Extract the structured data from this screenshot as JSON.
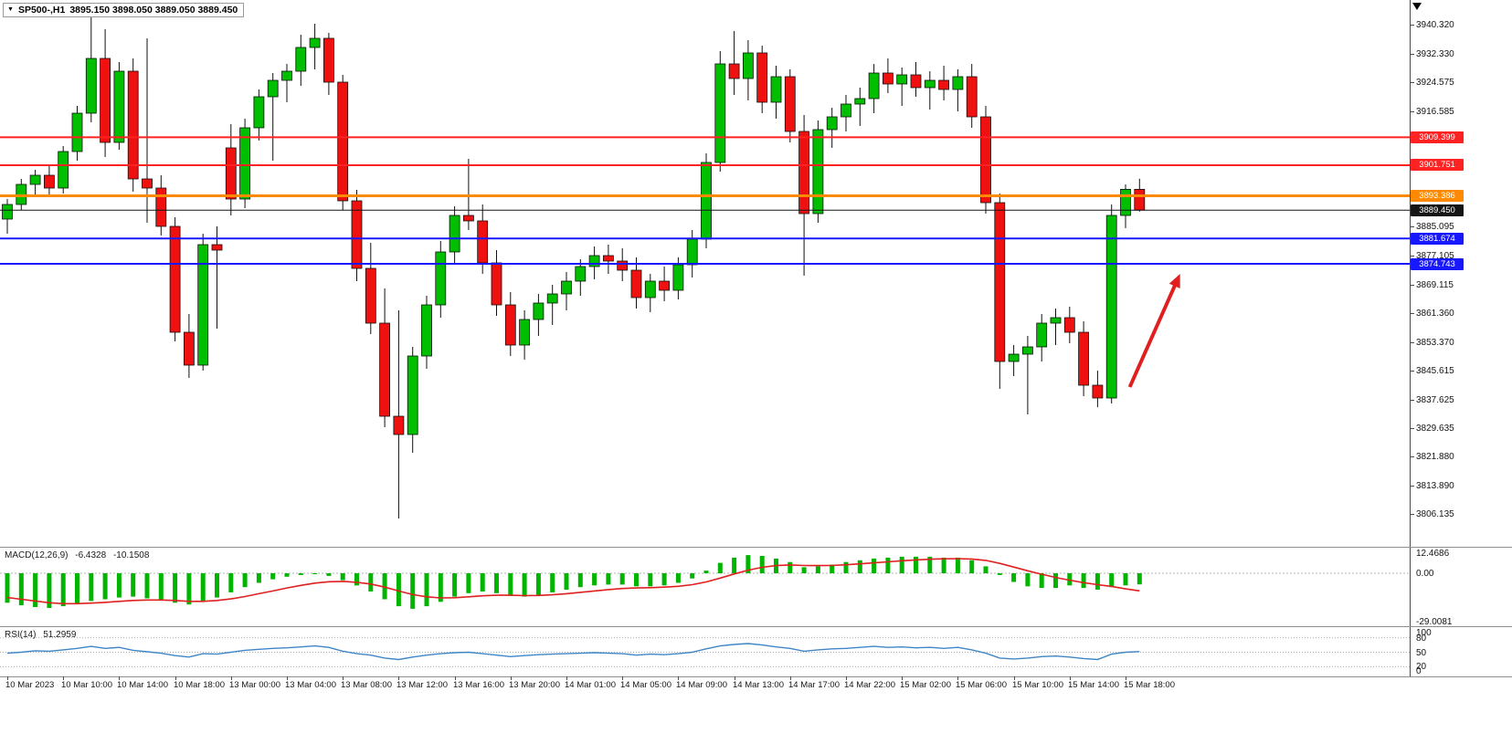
{
  "header": {
    "dropdown_icon": "▼",
    "symbol": "SP500-,H1",
    "ohlc_text": "3895.150 3898.050 3889.050 3889.450"
  },
  "colors": {
    "up": "#00bf00",
    "down": "#ef1010",
    "wick": "#101010",
    "macd_histogram": "#00b400",
    "macd_signal": "#e02020",
    "rsi_line": "#3f86c6",
    "arrow": "#e02020",
    "axis_text": "#151515",
    "resistance": "#ff2222",
    "support": "#1818ff",
    "pivot": "#ff8a00",
    "current_price": "#151515"
  },
  "chart_data": {
    "type": "candlestick",
    "symbol": "SP500-",
    "timeframe": "H1",
    "current_ohlc": {
      "open": 3895.15,
      "high": 3898.05,
      "low": 3889.05,
      "close": 3889.45
    },
    "y_axis": {
      "range_top": 3947.0,
      "range_bottom": 3797.5,
      "visible_ticks": [
        "3940.320",
        "3932.330",
        "3924.575",
        "3916.585",
        "3885.095",
        "3877.105",
        "3869.115",
        "3861.360",
        "3853.370",
        "3845.615",
        "3837.625",
        "3829.635",
        "3821.880",
        "3813.890",
        "3806.135"
      ]
    },
    "levels": [
      {
        "label": "3909.399",
        "price": 3909.399,
        "color": "#ff2222",
        "width": 2,
        "kind": "resistance"
      },
      {
        "label": "3901.751",
        "price": 3901.751,
        "color": "#ff2222",
        "width": 2,
        "kind": "resistance"
      },
      {
        "label": "3893.386",
        "price": 3893.386,
        "color": "#ff8a00",
        "width": 3,
        "kind": "pivot"
      },
      {
        "label": "3889.450",
        "price": 3889.45,
        "color": "#151515",
        "width": 1,
        "kind": "current-price"
      },
      {
        "label": "3881.674",
        "price": 3881.674,
        "color": "#1818ff",
        "width": 2,
        "kind": "support"
      },
      {
        "label": "3874.743",
        "price": 3874.743,
        "color": "#1818ff",
        "width": 2,
        "kind": "support"
      }
    ],
    "time_labels": [
      "10 Mar 2023",
      "10 Mar 10:00",
      "10 Mar 14:00",
      "10 Mar 18:00",
      "13 Mar 00:00",
      "13 Mar 04:00",
      "13 Mar 08:00",
      "13 Mar 12:00",
      "13 Mar 16:00",
      "13 Mar 20:00",
      "14 Mar 01:00",
      "14 Mar 05:00",
      "14 Mar 09:00",
      "14 Mar 13:00",
      "14 Mar 17:00",
      "14 Mar 22:00",
      "15 Mar 02:00",
      "15 Mar 06:00",
      "15 Mar 10:00",
      "15 Mar 14:00",
      "15 Mar 18:00"
    ],
    "candles": [
      [
        3887,
        3892.5,
        3883,
        3891
      ],
      [
        3891,
        3898,
        3889.5,
        3896.5
      ],
      [
        3896.5,
        3900.5,
        3893,
        3899
      ],
      [
        3899,
        3901.5,
        3893.5,
        3895.5
      ],
      [
        3895.5,
        3907,
        3894,
        3905.5
      ],
      [
        3905.5,
        3918,
        3903,
        3916
      ],
      [
        3916,
        3943.5,
        3913.5,
        3931
      ],
      [
        3931,
        3939,
        3904,
        3908
      ],
      [
        3908,
        3930,
        3906,
        3927.5
      ],
      [
        3927.5,
        3931,
        3894.5,
        3898
      ],
      [
        3898,
        3936.5,
        3886,
        3895.5
      ],
      [
        3895.5,
        3899,
        3882.5,
        3885
      ],
      [
        3885,
        3887.5,
        3853.5,
        3856
      ],
      [
        3856,
        3861,
        3843.5,
        3847
      ],
      [
        3847,
        3883,
        3845.5,
        3880
      ],
      [
        3880,
        3885,
        3857,
        3878.5
      ],
      [
        3906.5,
        3913,
        3888,
        3892.5
      ],
      [
        3892.5,
        3914.5,
        3890,
        3912
      ],
      [
        3912,
        3922.5,
        3908.5,
        3920.5
      ],
      [
        3920.5,
        3927,
        3903,
        3925
      ],
      [
        3925,
        3929.5,
        3919,
        3927.5
      ],
      [
        3927.5,
        3937.5,
        3923.5,
        3934
      ],
      [
        3934,
        3940.5,
        3928,
        3936.5
      ],
      [
        3936.5,
        3938,
        3921,
        3924.5
      ],
      [
        3924.5,
        3926.5,
        3889.5,
        3892
      ],
      [
        3892,
        3895,
        3870,
        3873.5
      ],
      [
        3873.5,
        3880.5,
        3855.5,
        3858.5
      ],
      [
        3858.5,
        3868,
        3830,
        3833
      ],
      [
        3833,
        3862,
        3805,
        3828
      ],
      [
        3828,
        3852,
        3823,
        3849.5
      ],
      [
        3849.5,
        3866,
        3846,
        3863.5
      ],
      [
        3863.5,
        3881,
        3860,
        3878
      ],
      [
        3878,
        3890.5,
        3874.5,
        3888
      ],
      [
        3888,
        3903.5,
        3884,
        3886.5
      ],
      [
        3886.5,
        3891,
        3872,
        3875
      ],
      [
        3875,
        3878.5,
        3860.5,
        3863.5
      ],
      [
        3863.5,
        3867,
        3849.5,
        3852.5
      ],
      [
        3852.5,
        3862,
        3848.5,
        3859.5
      ],
      [
        3859.5,
        3866.5,
        3855,
        3864
      ],
      [
        3864,
        3869,
        3858,
        3866.5
      ],
      [
        3866.5,
        3872.5,
        3862,
        3870
      ],
      [
        3870,
        3876,
        3866,
        3874
      ],
      [
        3874,
        3879.5,
        3870.5,
        3877
      ],
      [
        3877,
        3880,
        3872,
        3875.5
      ],
      [
        3875.5,
        3879,
        3870,
        3873
      ],
      [
        3873,
        3876.5,
        3862.5,
        3865.5
      ],
      [
        3865.5,
        3872,
        3861.5,
        3870
      ],
      [
        3870,
        3874,
        3864.5,
        3867.5
      ],
      [
        3867.5,
        3876.5,
        3865,
        3874.5
      ],
      [
        3874.5,
        3884,
        3871,
        3881.5
      ],
      [
        3881.5,
        3905,
        3879,
        3902.5
      ],
      [
        3902.5,
        3933,
        3900,
        3929.5
      ],
      [
        3929.5,
        3938.5,
        3921,
        3925.5
      ],
      [
        3925.5,
        3936,
        3919.5,
        3932.5
      ],
      [
        3932.5,
        3934.5,
        3916,
        3919
      ],
      [
        3919,
        3929,
        3914.5,
        3926
      ],
      [
        3926,
        3928,
        3908,
        3911
      ],
      [
        3911,
        3915.5,
        3871.5,
        3888.5
      ],
      [
        3888.5,
        3914,
        3886,
        3911.5
      ],
      [
        3911.5,
        3917.5,
        3906.5,
        3915
      ],
      [
        3915,
        3921,
        3911,
        3918.5
      ],
      [
        3918.5,
        3923,
        3912.5,
        3920
      ],
      [
        3920,
        3929.5,
        3916,
        3927
      ],
      [
        3927,
        3931,
        3921.5,
        3924
      ],
      [
        3924,
        3928.5,
        3918,
        3926.5
      ],
      [
        3926.5,
        3930,
        3920.5,
        3923
      ],
      [
        3923,
        3927.5,
        3917,
        3925
      ],
      [
        3925,
        3929,
        3919.5,
        3922.5
      ],
      [
        3922.5,
        3928,
        3916.5,
        3926
      ],
      [
        3926,
        3929.5,
        3912,
        3915
      ],
      [
        3915,
        3918,
        3888.5,
        3891.5
      ],
      [
        3891.5,
        3894,
        3840.5,
        3848
      ],
      [
        3848,
        3852.5,
        3844,
        3850
      ],
      [
        3850,
        3855,
        3833.5,
        3852
      ],
      [
        3852,
        3861,
        3848,
        3858.5
      ],
      [
        3858.5,
        3862.5,
        3852.5,
        3860
      ],
      [
        3860,
        3863,
        3853,
        3856
      ],
      [
        3856,
        3859,
        3838.5,
        3841.5
      ],
      [
        3841.5,
        3845.5,
        3835.5,
        3838
      ],
      [
        3838,
        3891,
        3836.5,
        3888
      ],
      [
        3888,
        3896.5,
        3884.5,
        3895.15
      ],
      [
        3895.15,
        3898.05,
        3889.05,
        3889.45
      ]
    ],
    "annotation_arrow": {
      "from_bar": 80.3,
      "from_price": 3841,
      "to_bar": 83.9,
      "to_price": 3872,
      "color": "#e02020"
    },
    "macd": {
      "title": "MACD(12,26,9)",
      "value_main": "-6.4328",
      "value_signal": "-10.1508",
      "axis_ticks": [
        "12.4686",
        "0.00",
        "-29.0081"
      ],
      "histogram": [
        -17,
        -18.5,
        -19.5,
        -20,
        -19,
        -17.5,
        -16,
        -15,
        -14,
        -13.5,
        -14.5,
        -15.5,
        -17,
        -18,
        -16,
        -14,
        -11,
        -8,
        -5.5,
        -3.5,
        -2,
        -1,
        -0.5,
        -1.5,
        -4,
        -7,
        -10.5,
        -15,
        -19,
        -20.5,
        -19,
        -16.5,
        -13.5,
        -11.5,
        -10.5,
        -11.5,
        -13,
        -13.5,
        -12.5,
        -11,
        -9.5,
        -8,
        -7,
        -6.5,
        -6.5,
        -7.5,
        -7.5,
        -7,
        -5.5,
        -3,
        1.5,
        6,
        9,
        10.5,
        10,
        8.5,
        6.5,
        3.5,
        4,
        5,
        6.5,
        7.5,
        8.5,
        9,
        9.5,
        9.5,
        9.5,
        9,
        9,
        7.5,
        4,
        -1,
        -5,
        -7.5,
        -8.5,
        -8.5,
        -7,
        -8.5,
        -9.5,
        -8,
        -7,
        -6.4328
      ],
      "signal": [
        -14,
        -15,
        -16,
        -17,
        -17.5,
        -17.5,
        -17.2,
        -16.8,
        -16.2,
        -15.7,
        -15.4,
        -15.4,
        -15.7,
        -16.2,
        -16.2,
        -15.7,
        -14.8,
        -13.4,
        -11.8,
        -10.2,
        -8.5,
        -7,
        -5.7,
        -4.9,
        -4.7,
        -5.2,
        -6.2,
        -8,
        -10.2,
        -12.3,
        -13.6,
        -14.2,
        -14.1,
        -13.6,
        -13,
        -12.7,
        -12.7,
        -12.9,
        -12.8,
        -12.4,
        -11.8,
        -11,
        -10.2,
        -9.4,
        -8.8,
        -8.5,
        -8.3,
        -8,
        -7.5,
        -6.6,
        -5,
        -2.8,
        -0.4,
        1.8,
        3.4,
        4.4,
        4.8,
        4.5,
        4.4,
        4.5,
        4.9,
        5.4,
        6,
        6.6,
        7.2,
        7.7,
        8.1,
        8.3,
        8.4,
        8.2,
        7.4,
        5.7,
        3.6,
        1.4,
        -0.6,
        -2.4,
        -4,
        -5.4,
        -6.6,
        -7.6,
        -9,
        -10.1508
      ]
    },
    "rsi": {
      "title": "RSI(14)",
      "value": "51.2959",
      "axis_ticks": [
        "100",
        "80",
        "50",
        "20",
        "0"
      ],
      "guide_levels": [
        80,
        50,
        20
      ],
      "values": [
        48,
        50,
        53,
        52,
        55,
        58,
        62,
        58,
        60,
        54,
        51,
        48,
        43,
        40,
        47,
        46,
        50,
        54,
        56,
        58,
        59,
        61,
        63,
        60,
        52,
        47,
        44,
        38,
        35,
        40,
        44,
        47,
        49,
        50,
        47,
        44,
        41,
        43,
        45,
        46,
        47,
        48,
        49,
        48,
        47,
        44,
        46,
        45,
        47,
        50,
        57,
        63,
        66,
        68,
        65,
        61,
        58,
        52,
        55,
        57,
        58,
        60,
        62,
        60,
        61,
        59,
        60,
        58,
        60,
        55,
        48,
        38,
        36,
        38,
        41,
        42,
        40,
        37,
        35,
        46,
        50,
        51.3
      ]
    }
  }
}
